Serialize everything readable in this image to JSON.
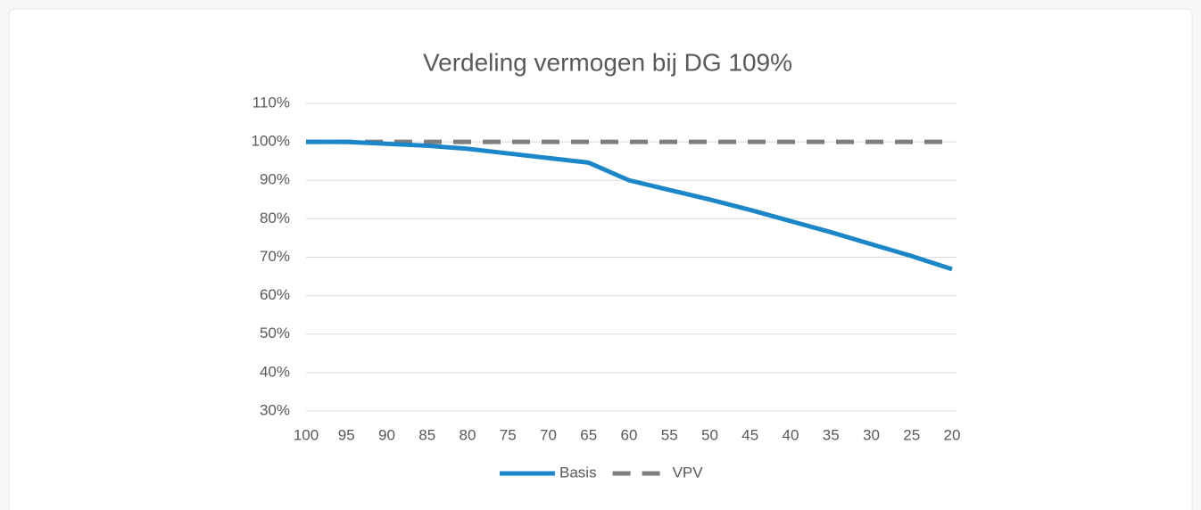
{
  "chart_data": {
    "type": "line",
    "title": "Verdeling vermogen bij DG 109%",
    "x": [
      100,
      95,
      90,
      85,
      80,
      75,
      70,
      65,
      60,
      55,
      50,
      45,
      40,
      35,
      30,
      25,
      20
    ],
    "series": [
      {
        "name": "Basis",
        "color": "#1b86c8",
        "values": [
          100,
          100,
          99.5,
          99,
          98.2,
          97,
          95.8,
          94.6,
          90,
          87.5,
          85,
          82.3,
          79.4,
          76.5,
          73.4,
          70.3,
          66.9
        ]
      },
      {
        "name": "VPV",
        "color": "#7f7f7f",
        "dash": true,
        "values": [
          100,
          100,
          100,
          100,
          100,
          100,
          100,
          100,
          100,
          100,
          100,
          100,
          100,
          100,
          100,
          100,
          100
        ]
      }
    ],
    "xlim": [
      100,
      20
    ],
    "xticks": [
      100,
      95,
      90,
      85,
      80,
      75,
      70,
      65,
      60,
      55,
      50,
      45,
      40,
      35,
      30,
      25,
      20
    ],
    "ylim": [
      30,
      110
    ],
    "yticks": [
      {
        "value": 30,
        "label": "30%"
      },
      {
        "value": 40,
        "label": "40%"
      },
      {
        "value": 50,
        "label": "50%"
      },
      {
        "value": 60,
        "label": "60%"
      },
      {
        "value": 70,
        "label": "70%"
      },
      {
        "value": 80,
        "label": "80%"
      },
      {
        "value": 90,
        "label": "90%"
      },
      {
        "value": 100,
        "label": "100%"
      },
      {
        "value": 110,
        "label": "110%"
      }
    ],
    "grid": true,
    "legend": "bottom"
  }
}
